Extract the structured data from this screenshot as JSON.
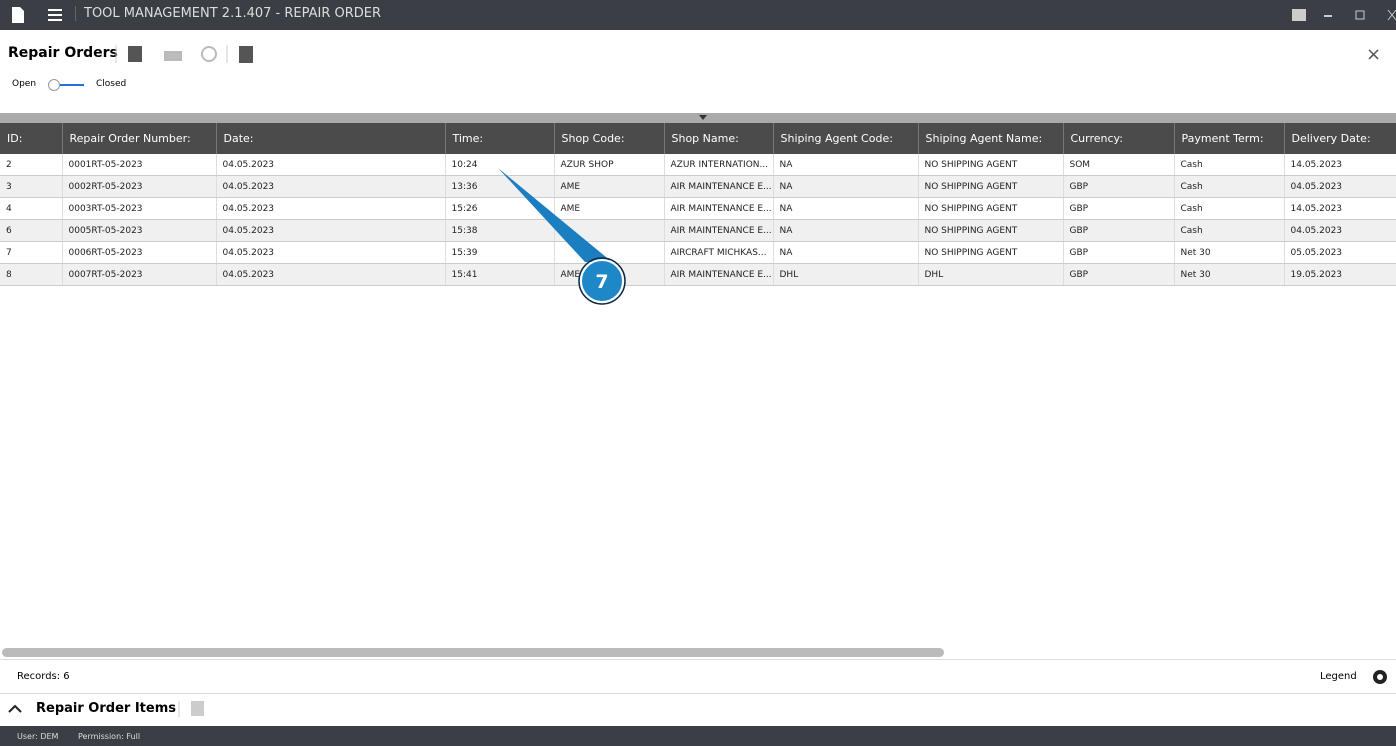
{
  "titlebar": {
    "title": "TOOL MANAGEMENT 2.1.407 - REPAIR ORDER"
  },
  "header": {
    "title": "Repair Orders",
    "toggle_off": "Open",
    "toggle_on": "Closed"
  },
  "table": {
    "columns": [
      "ID:",
      "Repair Order Number:",
      "Date:",
      "Time:",
      "Shop Code:",
      "Shop Name:",
      "Shiping Agent Code:",
      "Shiping Agent Name:",
      "Currency:",
      "Payment Term:",
      "Delivery Date:"
    ],
    "rows": [
      [
        "2",
        "0001RT-05-2023",
        "04.05.2023",
        "10:24",
        "AZUR SHOP",
        "AZUR INTERNATION...",
        "NA",
        "NO SHIPPING AGENT",
        "SOM",
        "Cash",
        "14.05.2023"
      ],
      [
        "3",
        "0002RT-05-2023",
        "04.05.2023",
        "13:36",
        "AME",
        "AIR MAINTENANCE E...",
        "NA",
        "NO SHIPPING AGENT",
        "GBP",
        "Cash",
        "04.05.2023"
      ],
      [
        "4",
        "0003RT-05-2023",
        "04.05.2023",
        "15:26",
        "AME",
        "AIR MAINTENANCE E...",
        "NA",
        "NO SHIPPING AGENT",
        "GBP",
        "Cash",
        "14.05.2023"
      ],
      [
        "6",
        "0005RT-05-2023",
        "04.05.2023",
        "15:38",
        null,
        "AIR MAINTENANCE E...",
        "NA",
        "NO SHIPPING AGENT",
        "GBP",
        "Cash",
        "04.05.2023"
      ],
      [
        "7",
        "0006RT-05-2023",
        "04.05.2023",
        "15:39",
        null,
        "AIRCRAFT MICHKAS...",
        "NA",
        "NO SHIPPING AGENT",
        "GBP",
        "Net 30",
        "05.05.2023"
      ],
      [
        "8",
        "0007RT-05-2023",
        "04.05.2023",
        "15:41",
        "AME",
        "AIR MAINTENANCE E...",
        "DHL",
        "DHL",
        "GBP",
        "Net 30",
        "19.05.2023"
      ]
    ]
  },
  "footer": {
    "records": "Records: 6",
    "legend": "Legend"
  },
  "details": {
    "title": "Repair Order Items"
  },
  "statusbar": {
    "user": "User: DEM",
    "permission": "Permission: Full"
  },
  "callout": {
    "label": "7"
  }
}
